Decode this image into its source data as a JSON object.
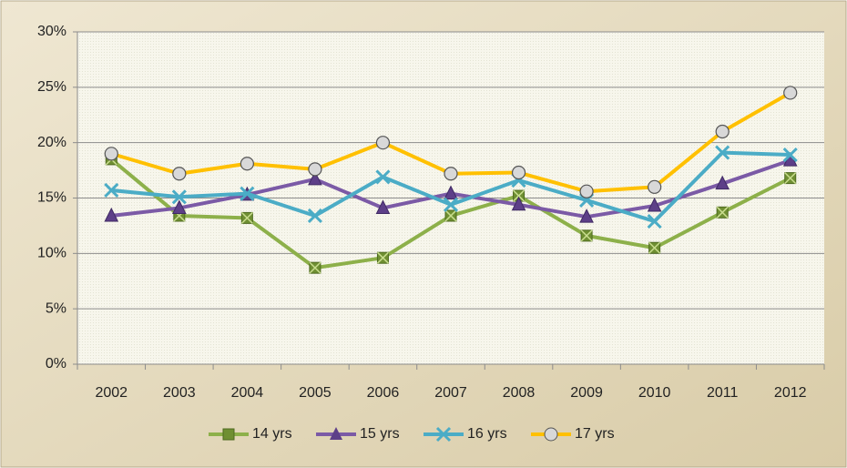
{
  "chart_data": {
    "type": "line",
    "categories": [
      "2002",
      "2003",
      "2004",
      "2005",
      "2006",
      "2007",
      "2008",
      "2009",
      "2010",
      "2011",
      "2012"
    ],
    "series": [
      {
        "name": "14 yrs",
        "color": "#8db04a",
        "marker": "square",
        "values": [
          18.5,
          13.4,
          13.2,
          8.7,
          9.6,
          13.4,
          15.2,
          11.6,
          10.5,
          13.7,
          16.8
        ]
      },
      {
        "name": "15 yrs",
        "color": "#7b5aa6",
        "marker": "triangle",
        "values": [
          13.4,
          14.1,
          15.3,
          16.7,
          14.1,
          15.4,
          14.4,
          13.3,
          14.3,
          16.3,
          18.4
        ]
      },
      {
        "name": "16 yrs",
        "color": "#4bacc6",
        "marker": "cross",
        "values": [
          15.7,
          15.1,
          15.4,
          13.4,
          16.9,
          14.4,
          16.6,
          14.8,
          12.9,
          19.1,
          18.9
        ]
      },
      {
        "name": "17 yrs",
        "color": "#ffc000",
        "marker": "circle",
        "values": [
          19.0,
          17.2,
          18.1,
          17.6,
          20.0,
          17.2,
          17.3,
          15.6,
          16.0,
          21.0,
          24.5
        ]
      }
    ],
    "ylim": [
      0,
      30
    ],
    "yticks": [
      {
        "value": 0,
        "label": "0%"
      },
      {
        "value": 5,
        "label": "5%"
      },
      {
        "value": 10,
        "label": "10%"
      },
      {
        "value": 15,
        "label": "15%"
      },
      {
        "value": 20,
        "label": "20%"
      },
      {
        "value": 25,
        "label": "25%"
      },
      {
        "value": 30,
        "label": "30%"
      }
    ],
    "grid": true,
    "legend": "bottom"
  }
}
